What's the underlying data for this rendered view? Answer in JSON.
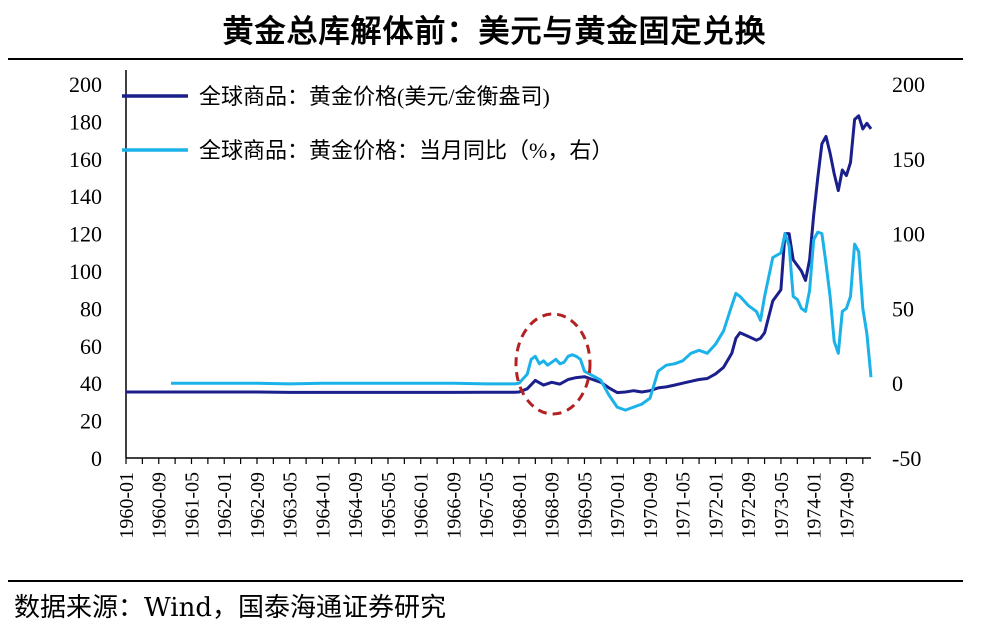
{
  "header": {
    "title": "黄金总库解体前：美元与黄金固定兑换"
  },
  "footer": {
    "source": "数据来源：Wind，国泰海通证券研究"
  },
  "colors": {
    "series_left": "#1a1f8c",
    "series_right": "#1ab2e8",
    "highlight_ellipse": "#b22222"
  },
  "chart_data": {
    "type": "line",
    "title": "",
    "xlabel": "",
    "ylabel": "",
    "x_ticks": [
      "1960-01",
      "1960-09",
      "1961-05",
      "1962-01",
      "1962-09",
      "1963-05",
      "1964-01",
      "1964-09",
      "1965-05",
      "1966-01",
      "1966-09",
      "1967-05",
      "1968-01",
      "1968-09",
      "1969-05",
      "1970-01",
      "1970-09",
      "1971-05",
      "1972-01",
      "1972-09",
      "1973-05",
      "1974-01",
      "1974-09"
    ],
    "y_left": {
      "ticks": [
        0,
        20,
        40,
        60,
        80,
        100,
        120,
        140,
        160,
        180,
        200
      ],
      "range": [
        0,
        200
      ]
    },
    "y_right": {
      "ticks": [
        -50,
        0,
        50,
        100,
        150,
        200
      ],
      "range": [
        -50,
        200
      ]
    },
    "legend_position": "top-left",
    "annotation": "dashed ellipse around 1968-01 to 1969-05",
    "series": [
      {
        "name": "全球商品：黄金价格(美元/金衡盎司)",
        "axis": "left",
        "points": [
          [
            "1960-01",
            35.3
          ],
          [
            "1960-09",
            35.3
          ],
          [
            "1961-05",
            35.3
          ],
          [
            "1962-01",
            35.3
          ],
          [
            "1962-09",
            35.3
          ],
          [
            "1963-05",
            35.1
          ],
          [
            "1964-01",
            35.1
          ],
          [
            "1964-09",
            35.1
          ],
          [
            "1965-05",
            35.1
          ],
          [
            "1966-01",
            35.1
          ],
          [
            "1966-09",
            35.1
          ],
          [
            "1967-05",
            35.2
          ],
          [
            "1967-12",
            35.2
          ],
          [
            "1968-01",
            35.3
          ],
          [
            "1968-03",
            37
          ],
          [
            "1968-05",
            41.5
          ],
          [
            "1968-07",
            39
          ],
          [
            "1968-09",
            40.5
          ],
          [
            "1968-11",
            39.5
          ],
          [
            "1969-01",
            42
          ],
          [
            "1969-03",
            43
          ],
          [
            "1969-05",
            43.5
          ],
          [
            "1969-07",
            42
          ],
          [
            "1969-09",
            40.5
          ],
          [
            "1969-11",
            37.5
          ],
          [
            "1970-01",
            35
          ],
          [
            "1970-03",
            35.3
          ],
          [
            "1970-05",
            36
          ],
          [
            "1970-07",
            35.3
          ],
          [
            "1970-09",
            36
          ],
          [
            "1970-11",
            37.5
          ],
          [
            "1971-01",
            38
          ],
          [
            "1971-03",
            39
          ],
          [
            "1971-05",
            40
          ],
          [
            "1971-07",
            41
          ],
          [
            "1971-09",
            42
          ],
          [
            "1971-11",
            42.5
          ],
          [
            "1972-01",
            45
          ],
          [
            "1972-03",
            48.5
          ],
          [
            "1972-05",
            56
          ],
          [
            "1972-06",
            64
          ],
          [
            "1972-07",
            67
          ],
          [
            "1972-09",
            65
          ],
          [
            "1972-11",
            63
          ],
          [
            "1972-12",
            64
          ],
          [
            "1973-01",
            67
          ],
          [
            "1973-03",
            84
          ],
          [
            "1973-05",
            90
          ],
          [
            "1973-06",
            120
          ],
          [
            "1973-07",
            120
          ],
          [
            "1973-08",
            106
          ],
          [
            "1973-09",
            103
          ],
          [
            "1973-10",
            100
          ],
          [
            "1973-11",
            95
          ],
          [
            "1973-12",
            106
          ],
          [
            "1974-01",
            130
          ],
          [
            "1974-02",
            150
          ],
          [
            "1974-03",
            168
          ],
          [
            "1974-04",
            172
          ],
          [
            "1974-05",
            163
          ],
          [
            "1974-06",
            152
          ],
          [
            "1974-07",
            143
          ],
          [
            "1974-08",
            154
          ],
          [
            "1974-09",
            151
          ],
          [
            "1974-10",
            158
          ],
          [
            "1974-11",
            181
          ],
          [
            "1974-12",
            183
          ],
          [
            "1975-01",
            176
          ],
          [
            "1975-02",
            179
          ],
          [
            "1975-03",
            176
          ]
        ]
      },
      {
        "name": "全球商品：黄金价格：当月同比（%，右）",
        "axis": "right",
        "points": [
          [
            "1960-12",
            0
          ],
          [
            "1961-05",
            0
          ],
          [
            "1962-01",
            0
          ],
          [
            "1962-09",
            0
          ],
          [
            "1963-05",
            -0.5
          ],
          [
            "1964-01",
            0
          ],
          [
            "1964-09",
            0
          ],
          [
            "1965-05",
            0
          ],
          [
            "1966-01",
            0
          ],
          [
            "1966-09",
            0
          ],
          [
            "1967-05",
            -0.5
          ],
          [
            "1967-12",
            -0.5
          ],
          [
            "1968-01",
            0
          ],
          [
            "1968-03",
            6
          ],
          [
            "1968-04",
            16
          ],
          [
            "1968-05",
            18
          ],
          [
            "1968-06",
            13
          ],
          [
            "1968-07",
            15
          ],
          [
            "1968-08",
            12
          ],
          [
            "1968-09",
            14
          ],
          [
            "1968-10",
            16
          ],
          [
            "1968-11",
            13
          ],
          [
            "1968-12",
            14
          ],
          [
            "1969-01",
            18
          ],
          [
            "1969-02",
            19
          ],
          [
            "1969-03",
            18
          ],
          [
            "1969-04",
            16
          ],
          [
            "1969-05",
            8
          ],
          [
            "1969-07",
            5
          ],
          [
            "1969-09",
            2
          ],
          [
            "1969-11",
            -8
          ],
          [
            "1970-01",
            -16
          ],
          [
            "1970-03",
            -18
          ],
          [
            "1970-05",
            -16
          ],
          [
            "1970-07",
            -14
          ],
          [
            "1970-09",
            -10
          ],
          [
            "1970-11",
            8
          ],
          [
            "1971-01",
            12
          ],
          [
            "1971-03",
            13
          ],
          [
            "1971-05",
            15
          ],
          [
            "1971-07",
            20
          ],
          [
            "1971-09",
            22
          ],
          [
            "1971-11",
            20
          ],
          [
            "1972-01",
            26
          ],
          [
            "1972-03",
            35
          ],
          [
            "1972-05",
            52
          ],
          [
            "1972-06",
            60
          ],
          [
            "1972-07",
            58
          ],
          [
            "1972-09",
            52
          ],
          [
            "1972-11",
            48
          ],
          [
            "1972-12",
            42
          ],
          [
            "1973-01",
            58
          ],
          [
            "1973-03",
            84
          ],
          [
            "1973-05",
            87
          ],
          [
            "1973-06",
            100
          ],
          [
            "1973-07",
            92
          ],
          [
            "1973-08",
            58
          ],
          [
            "1973-09",
            56
          ],
          [
            "1973-10",
            50
          ],
          [
            "1973-11",
            48
          ],
          [
            "1973-12",
            62
          ],
          [
            "1974-01",
            96
          ],
          [
            "1974-02",
            101
          ],
          [
            "1974-03",
            100
          ],
          [
            "1974-04",
            80
          ],
          [
            "1974-05",
            58
          ],
          [
            "1974-06",
            28
          ],
          [
            "1974-07",
            20
          ],
          [
            "1974-08",
            48
          ],
          [
            "1974-09",
            50
          ],
          [
            "1974-10",
            58
          ],
          [
            "1974-11",
            93
          ],
          [
            "1974-12",
            88
          ],
          [
            "1975-01",
            50
          ],
          [
            "1975-02",
            33
          ],
          [
            "1975-03",
            4
          ]
        ]
      }
    ]
  }
}
